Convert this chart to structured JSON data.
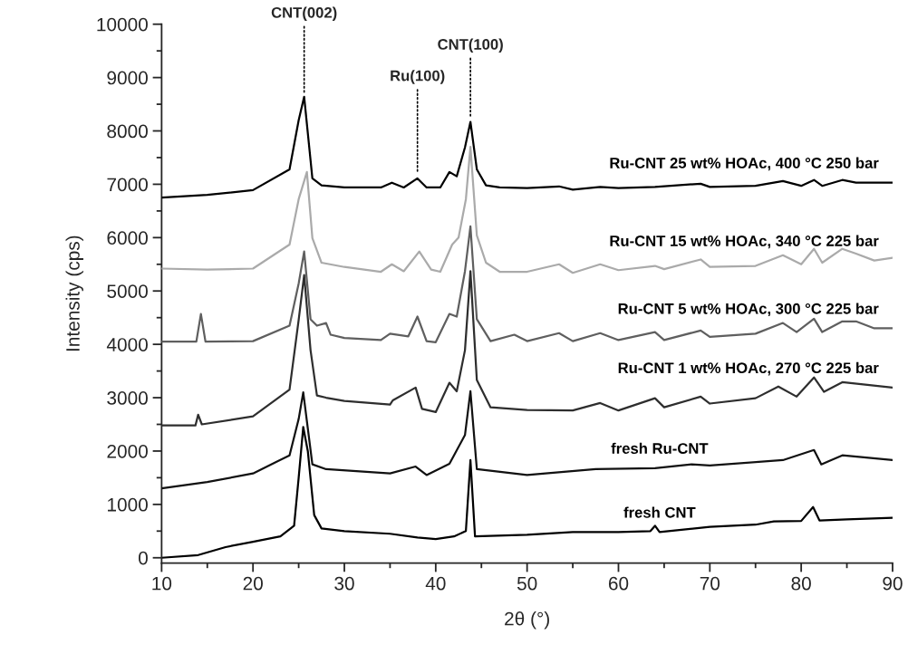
{
  "chart_data": {
    "type": "line",
    "xlabel": "2θ (°)",
    "ylabel": "Intensity (cps)",
    "xlim": [
      10,
      90
    ],
    "xticks": [
      10,
      20,
      30,
      40,
      50,
      60,
      70,
      80,
      90
    ],
    "ylim": [
      -100,
      10000
    ],
    "yticks": [
      0,
      1000,
      2000,
      3000,
      4000,
      5000,
      6000,
      7000,
      8000,
      9000,
      10000
    ],
    "grid": false,
    "legend": false,
    "marker": "none",
    "line_style": "solid",
    "annotations": [
      {
        "text": "CNT(002)",
        "x": 25.6,
        "y": 8600
      },
      {
        "text": "Ru(100)",
        "x": 38,
        "y": 7110
      },
      {
        "text": "CNT(100)",
        "x": 43.8,
        "y": 8170
      }
    ],
    "series": [
      {
        "name": "Ru-CNT 25 wt% HOAc, 400 °C 250 bar",
        "color": "#000000",
        "x": [
          10,
          15,
          20,
          24,
          25,
          25.6,
          26.5,
          27.5,
          30,
          34,
          35.2,
          36.5,
          38,
          39,
          40.5,
          41.5,
          42.3,
          43.2,
          43.8,
          44.5,
          45.5,
          47,
          50,
          53.5,
          55,
          58,
          60,
          64,
          69,
          70,
          75,
          78,
          80,
          81.4,
          82.3,
          84.5,
          86,
          90
        ],
        "values": [
          6750,
          6800,
          6890,
          7280,
          8200,
          8640,
          7110,
          6980,
          6940,
          6940,
          7030,
          6940,
          7110,
          6940,
          6940,
          7230,
          7150,
          7690,
          8170,
          7280,
          6980,
          6940,
          6930,
          6960,
          6900,
          6950,
          6930,
          6950,
          7010,
          6950,
          6970,
          7060,
          6970,
          7080,
          6970,
          7080,
          7030,
          7030
        ]
      },
      {
        "name": "Ru-CNT 15 wt% HOAc, 340 °C 225 bar",
        "color": "#aaaaaa",
        "x": [
          10,
          15,
          20,
          24,
          25,
          25.9,
          26.5,
          27.5,
          30,
          34,
          35.2,
          36.5,
          38.2,
          39.5,
          40.5,
          41.8,
          42.5,
          43.3,
          43.8,
          44.5,
          45.5,
          47,
          50,
          53.5,
          55,
          58,
          60,
          64,
          65,
          69,
          70,
          75,
          78,
          80,
          81.4,
          82.3,
          84.5,
          86,
          88,
          90
        ],
        "values": [
          5420,
          5400,
          5420,
          5870,
          6720,
          7230,
          5990,
          5530,
          5450,
          5360,
          5500,
          5370,
          5740,
          5400,
          5360,
          5870,
          6000,
          6720,
          7700,
          6040,
          5530,
          5360,
          5360,
          5500,
          5340,
          5500,
          5390,
          5470,
          5410,
          5590,
          5450,
          5470,
          5670,
          5500,
          5790,
          5530,
          5790,
          5700,
          5570,
          5620
        ]
      },
      {
        "name": "Ru-CNT 5 wt% HOAc, 300 °C 225 bar",
        "color": "#5f5f5f",
        "x": [
          10,
          13.8,
          14.3,
          14.8,
          20,
          24,
          25,
          25.6,
          26.3,
          27,
          28,
          28.5,
          30,
          34,
          35,
          37,
          38,
          39,
          40,
          41.5,
          42.3,
          43.2,
          43.8,
          44.5,
          46,
          48.6,
          50,
          53.5,
          55,
          58,
          60,
          64,
          65,
          69,
          70,
          75,
          78,
          79.5,
          81.4,
          82.3,
          84.5,
          86,
          88,
          90
        ],
        "values": [
          4050,
          4050,
          4570,
          4050,
          4060,
          4350,
          5140,
          5740,
          4470,
          4350,
          4400,
          4180,
          4120,
          4080,
          4200,
          4150,
          4520,
          4060,
          4040,
          4570,
          4520,
          5370,
          6210,
          4470,
          4060,
          4180,
          4060,
          4210,
          4060,
          4210,
          4080,
          4230,
          4080,
          4260,
          4140,
          4200,
          4400,
          4230,
          4480,
          4230,
          4430,
          4430,
          4300,
          4300
        ]
      },
      {
        "name": "Ru-CNT 1 wt% HOAc, 270 °C 225 bar",
        "color": "#2e2e2e",
        "x": [
          10,
          13.7,
          14,
          14.4,
          20,
          24,
          25,
          25.6,
          26.3,
          27,
          28,
          30,
          35,
          35.3,
          37.8,
          38.5,
          40,
          41.5,
          42.3,
          43.2,
          43.8,
          44.5,
          46,
          50,
          55,
          58,
          60,
          64,
          65,
          69,
          70,
          75,
          77.5,
          79.5,
          81.4,
          82.5,
          84.5,
          90
        ],
        "values": [
          2480,
          2480,
          2680,
          2500,
          2650,
          3150,
          4460,
          5300,
          3890,
          3040,
          3000,
          2940,
          2870,
          2950,
          3190,
          2790,
          2730,
          3280,
          3120,
          3890,
          5370,
          3330,
          2820,
          2770,
          2760,
          2900,
          2760,
          2990,
          2820,
          3020,
          2890,
          2990,
          3210,
          3020,
          3380,
          3110,
          3290,
          3190
        ]
      },
      {
        "name": "fresh Ru-CNT",
        "color": "#111111",
        "x": [
          10,
          15,
          20,
          24,
          25,
          25.5,
          26.5,
          28,
          35,
          37.8,
          39,
          41.5,
          43.2,
          43.8,
          44.5,
          50,
          57.5,
          64,
          68,
          70,
          78,
          81.4,
          82.2,
          84.5,
          90
        ],
        "values": [
          1300,
          1420,
          1580,
          1920,
          2600,
          3100,
          1750,
          1660,
          1580,
          1710,
          1550,
          1760,
          2300,
          3120,
          1660,
          1550,
          1660,
          1680,
          1750,
          1730,
          1830,
          2020,
          1750,
          1920,
          1830
        ]
      },
      {
        "name": "fresh CNT",
        "color": "#000000",
        "x": [
          10,
          14,
          17,
          20,
          23,
          24.5,
          25,
          25.5,
          26,
          26.7,
          27.5,
          30,
          35,
          38,
          40,
          42,
          43.3,
          43.8,
          44.3,
          50,
          55,
          60,
          63.5,
          64,
          64.5,
          70,
          75,
          77,
          80,
          81.3,
          82,
          85,
          90
        ],
        "values": [
          0,
          50,
          200,
          300,
          400,
          600,
          1500,
          2450,
          2000,
          800,
          550,
          500,
          450,
          380,
          350,
          400,
          500,
          1830,
          400,
          430,
          480,
          480,
          500,
          600,
          480,
          580,
          620,
          680,
          690,
          950,
          700,
          720,
          750
        ]
      }
    ]
  }
}
